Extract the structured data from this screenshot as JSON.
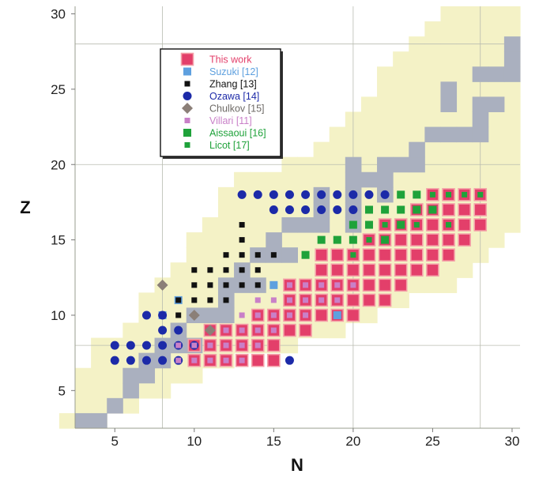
{
  "chart_data": {
    "type": "scatter",
    "title": "",
    "xlabel": "N",
    "ylabel": "Z",
    "xlim": [
      2.5,
      30.5
    ],
    "ylim": [
      2.5,
      30.5
    ],
    "xticks": [
      5,
      10,
      15,
      20,
      25,
      30
    ],
    "yticks": [
      5,
      10,
      15,
      20,
      25,
      30
    ],
    "gridlines": {
      "x": [
        8,
        20,
        28
      ],
      "y": [
        8,
        20,
        28
      ]
    },
    "legend_position": "upper-left",
    "colors": {
      "unknown_region": "#f4f2c6",
      "stable": "#aab0bf",
      "this_work": "#e33f6a",
      "suzuki": "#5ea0df",
      "zhang": "#111111",
      "ozawa": "#1c2aa8",
      "chulkov": "#8b7f78",
      "villari": "#c980c8",
      "aissaoui": "#1fa23a",
      "licot": "#1fa23a"
    },
    "stable_nuclei": [
      [
        3,
        3
      ],
      [
        4,
        3
      ],
      [
        5,
        4
      ],
      [
        6,
        5
      ],
      [
        7,
        6
      ],
      [
        6,
        6
      ],
      [
        7,
        7
      ],
      [
        8,
        7
      ],
      [
        8,
        8
      ],
      [
        9,
        8
      ],
      [
        10,
        8
      ],
      [
        9,
        9
      ],
      [
        10,
        10
      ],
      [
        11,
        10
      ],
      [
        12,
        10
      ],
      [
        12,
        11
      ],
      [
        12,
        12
      ],
      [
        13,
        12
      ],
      [
        14,
        12
      ],
      [
        13,
        13
      ],
      [
        14,
        14
      ],
      [
        15,
        14
      ],
      [
        16,
        14
      ],
      [
        15,
        15
      ],
      [
        16,
        16
      ],
      [
        17,
        16
      ],
      [
        18,
        16
      ],
      [
        20,
        16
      ],
      [
        18,
        17
      ],
      [
        20,
        17
      ],
      [
        18,
        18
      ],
      [
        20,
        18
      ],
      [
        22,
        18
      ],
      [
        20,
        19
      ],
      [
        21,
        19
      ],
      [
        22,
        19
      ],
      [
        20,
        20
      ],
      [
        22,
        20
      ],
      [
        23,
        20
      ],
      [
        24,
        20
      ],
      [
        24,
        21
      ],
      [
        25,
        22
      ],
      [
        26,
        22
      ],
      [
        27,
        22
      ],
      [
        28,
        22
      ],
      [
        28,
        23
      ],
      [
        26,
        24
      ],
      [
        28,
        24
      ],
      [
        29,
        24
      ],
      [
        26,
        25
      ],
      [
        28,
        26
      ],
      [
        29,
        26
      ],
      [
        30,
        26
      ],
      [
        30,
        27
      ],
      [
        30,
        28
      ]
    ],
    "series": [
      {
        "name": "This work",
        "marker": "square-large",
        "points": [
          [
            10,
            7
          ],
          [
            11,
            7
          ],
          [
            12,
            7
          ],
          [
            13,
            7
          ],
          [
            14,
            7
          ],
          [
            15,
            7
          ],
          [
            10,
            8
          ],
          [
            11,
            8
          ],
          [
            12,
            8
          ],
          [
            13,
            8
          ],
          [
            14,
            8
          ],
          [
            15,
            8
          ],
          [
            11,
            9
          ],
          [
            12,
            9
          ],
          [
            13,
            9
          ],
          [
            14,
            9
          ],
          [
            15,
            9
          ],
          [
            16,
            9
          ],
          [
            17,
            9
          ],
          [
            14,
            10
          ],
          [
            15,
            10
          ],
          [
            16,
            10
          ],
          [
            17,
            10
          ],
          [
            18,
            10
          ],
          [
            19,
            10
          ],
          [
            20,
            10
          ],
          [
            16,
            11
          ],
          [
            17,
            11
          ],
          [
            18,
            11
          ],
          [
            19,
            11
          ],
          [
            20,
            11
          ],
          [
            21,
            11
          ],
          [
            22,
            11
          ],
          [
            16,
            12
          ],
          [
            17,
            12
          ],
          [
            18,
            12
          ],
          [
            19,
            12
          ],
          [
            20,
            12
          ],
          [
            21,
            12
          ],
          [
            22,
            12
          ],
          [
            23,
            12
          ],
          [
            18,
            13
          ],
          [
            19,
            13
          ],
          [
            20,
            13
          ],
          [
            21,
            13
          ],
          [
            22,
            13
          ],
          [
            23,
            13
          ],
          [
            24,
            13
          ],
          [
            25,
            13
          ],
          [
            18,
            14
          ],
          [
            19,
            14
          ],
          [
            20,
            14
          ],
          [
            21,
            14
          ],
          [
            22,
            14
          ],
          [
            23,
            14
          ],
          [
            24,
            14
          ],
          [
            25,
            14
          ],
          [
            26,
            14
          ],
          [
            21,
            15
          ],
          [
            22,
            15
          ],
          [
            23,
            15
          ],
          [
            24,
            15
          ],
          [
            25,
            15
          ],
          [
            26,
            15
          ],
          [
            27,
            15
          ],
          [
            22,
            16
          ],
          [
            23,
            16
          ],
          [
            24,
            16
          ],
          [
            25,
            16
          ],
          [
            26,
            16
          ],
          [
            27,
            16
          ],
          [
            28,
            16
          ],
          [
            24,
            17
          ],
          [
            25,
            17
          ],
          [
            26,
            17
          ],
          [
            27,
            17
          ],
          [
            28,
            17
          ],
          [
            25,
            18
          ],
          [
            26,
            18
          ],
          [
            27,
            18
          ],
          [
            28,
            18
          ]
        ]
      },
      {
        "name": "Suzuki [12]",
        "marker": "square",
        "points": [
          [
            8,
            10
          ],
          [
            9,
            11
          ],
          [
            15,
            12
          ],
          [
            19,
            10
          ]
        ]
      },
      {
        "name": "Zhang [13]",
        "marker": "square-small",
        "points": [
          [
            8,
            10
          ],
          [
            9,
            10
          ],
          [
            9,
            11
          ],
          [
            10,
            11
          ],
          [
            11,
            11
          ],
          [
            12,
            11
          ],
          [
            10,
            12
          ],
          [
            11,
            12
          ],
          [
            12,
            12
          ],
          [
            13,
            12
          ],
          [
            14,
            12
          ],
          [
            10,
            13
          ],
          [
            11,
            13
          ],
          [
            12,
            13
          ],
          [
            13,
            13
          ],
          [
            14,
            13
          ],
          [
            12,
            14
          ],
          [
            13,
            14
          ],
          [
            14,
            14
          ],
          [
            15,
            14
          ],
          [
            13,
            15
          ],
          [
            13,
            16
          ]
        ]
      },
      {
        "name": "Ozawa [14]",
        "marker": "circle",
        "points": [
          [
            5,
            7
          ],
          [
            6,
            7
          ],
          [
            7,
            7
          ],
          [
            8,
            7
          ],
          [
            9,
            7
          ],
          [
            16,
            7
          ],
          [
            5,
            8
          ],
          [
            6,
            8
          ],
          [
            7,
            8
          ],
          [
            8,
            8
          ],
          [
            9,
            8
          ],
          [
            10,
            8
          ],
          [
            8,
            9
          ],
          [
            9,
            9
          ],
          [
            7,
            10
          ],
          [
            8,
            10
          ],
          [
            13,
            18
          ],
          [
            14,
            18
          ],
          [
            15,
            18
          ],
          [
            16,
            18
          ],
          [
            17,
            18
          ],
          [
            18,
            18
          ],
          [
            19,
            18
          ],
          [
            20,
            18
          ],
          [
            21,
            18
          ],
          [
            22,
            18
          ],
          [
            15,
            17
          ],
          [
            16,
            17
          ],
          [
            17,
            17
          ],
          [
            18,
            17
          ],
          [
            19,
            17
          ],
          [
            20,
            17
          ]
        ]
      },
      {
        "name": "Chulkov [15]",
        "marker": "diamond",
        "points": [
          [
            8,
            12
          ],
          [
            10,
            10
          ],
          [
            11,
            9
          ]
        ]
      },
      {
        "name": "Villari [11]",
        "marker": "square-small",
        "points": [
          [
            9,
            7
          ],
          [
            10,
            7
          ],
          [
            11,
            7
          ],
          [
            12,
            7
          ],
          [
            13,
            7
          ],
          [
            9,
            8
          ],
          [
            10,
            8
          ],
          [
            11,
            8
          ],
          [
            12,
            8
          ],
          [
            13,
            8
          ],
          [
            14,
            8
          ],
          [
            12,
            9
          ],
          [
            13,
            9
          ],
          [
            14,
            9
          ],
          [
            15,
            9
          ],
          [
            13,
            10
          ],
          [
            14,
            10
          ],
          [
            15,
            10
          ],
          [
            16,
            10
          ],
          [
            17,
            10
          ],
          [
            14,
            11
          ],
          [
            15,
            11
          ],
          [
            16,
            11
          ],
          [
            17,
            11
          ],
          [
            18,
            11
          ],
          [
            19,
            11
          ],
          [
            16,
            12
          ],
          [
            17,
            12
          ],
          [
            18,
            12
          ],
          [
            19,
            12
          ],
          [
            20,
            12
          ]
        ]
      },
      {
        "name": "Aissaoui [16]",
        "marker": "square",
        "points": [
          [
            17,
            14
          ],
          [
            18,
            15
          ],
          [
            19,
            15
          ],
          [
            20,
            15
          ],
          [
            20,
            16
          ],
          [
            21,
            16
          ],
          [
            21,
            17
          ],
          [
            22,
            17
          ],
          [
            23,
            18
          ],
          [
            24,
            18
          ],
          [
            22,
            15
          ],
          [
            23,
            16
          ],
          [
            24,
            17
          ],
          [
            25,
            17
          ],
          [
            23,
            17
          ]
        ]
      },
      {
        "name": "Licot [17]",
        "marker": "square-small",
        "points": [
          [
            20,
            14
          ],
          [
            21,
            15
          ],
          [
            22,
            16
          ],
          [
            24,
            16
          ],
          [
            26,
            16
          ],
          [
            25,
            18
          ],
          [
            26,
            18
          ],
          [
            27,
            18
          ],
          [
            28,
            18
          ]
        ]
      }
    ]
  },
  "legend": {
    "items": [
      {
        "text": "This work",
        "ref": "",
        "color": "#e33f6a",
        "ref_color": "#e33f6a"
      },
      {
        "text": "Suzuki ",
        "ref": "[12]",
        "color": "#5ea0df",
        "ref_color": "#5ea0df"
      },
      {
        "text": "Zhang ",
        "ref": "[13]",
        "color": "#111111",
        "ref_color": "#111111"
      },
      {
        "text": "Ozawa ",
        "ref": "[14]",
        "color": "#1c2aa8",
        "ref_color": "#1c2aa8"
      },
      {
        "text": "Chulkov ",
        "ref": "[15]",
        "color": "#6e6a66",
        "ref_color": "#6e6a66"
      },
      {
        "text": "Villari ",
        "ref": "[11]",
        "color": "#c980c8",
        "ref_color": "#c980c8"
      },
      {
        "text": "Aissaoui ",
        "ref": "[16]",
        "color": "#1fa23a",
        "ref_color": "#1fa23a"
      },
      {
        "text": "Licot ",
        "ref": "[17]",
        "color": "#1fa23a",
        "ref_color": "#1fa23a"
      }
    ]
  }
}
